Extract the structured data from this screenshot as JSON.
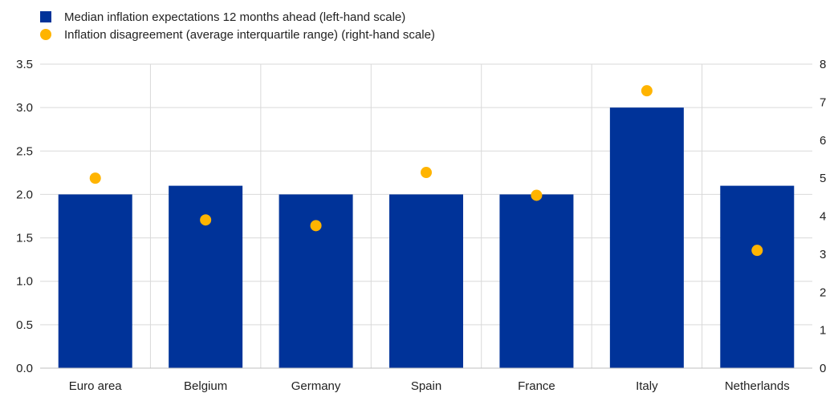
{
  "chart_data": {
    "type": "bar",
    "categories": [
      "Euro area",
      "Belgium",
      "Germany",
      "Spain",
      "France",
      "Italy",
      "Netherlands"
    ],
    "series": [
      {
        "name": "Median inflation expectations 12 months ahead (left-hand scale)",
        "kind": "bar",
        "axis": "left",
        "color": "#003399",
        "values": [
          2.0,
          2.1,
          2.0,
          2.0,
          2.0,
          3.0,
          2.1
        ]
      },
      {
        "name": "Inflation disagreement (average interquartile range) (right-hand scale)",
        "kind": "scatter",
        "axis": "right",
        "color": "#FFB400",
        "values": [
          5.0,
          3.9,
          3.75,
          5.15,
          4.55,
          7.3,
          3.1
        ]
      }
    ],
    "y_left": {
      "min": 0,
      "max": 3.5,
      "ticks": [
        "0.0",
        "0.5",
        "1.0",
        "1.5",
        "2.0",
        "2.5",
        "3.0",
        "3.5"
      ]
    },
    "y_right": {
      "min": 0,
      "max": 8,
      "ticks": [
        "0",
        "1",
        "2",
        "3",
        "4",
        "5",
        "6",
        "7",
        "8"
      ]
    },
    "grid": true,
    "legend_position": "top-left"
  }
}
